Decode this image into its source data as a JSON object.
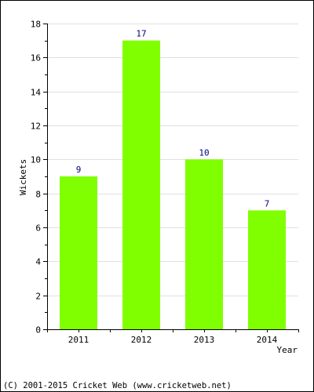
{
  "chart_data": {
    "type": "bar",
    "categories": [
      "2011",
      "2012",
      "2013",
      "2014"
    ],
    "values": [
      9,
      17,
      10,
      7
    ],
    "data_labels": [
      "9",
      "17",
      "10",
      "7"
    ],
    "xlabel": "Year",
    "ylabel": "Wickets",
    "ylim": [
      0,
      18
    ],
    "y_ticks": [
      0,
      2,
      4,
      6,
      8,
      10,
      12,
      14,
      16,
      18
    ],
    "grid": true,
    "legend": "none"
  },
  "colors": {
    "bar": "#80ff00",
    "text": "#000000",
    "data_label": "#000080",
    "grid": "#e0e0e0",
    "axis": "#000000",
    "frame": "#000000"
  },
  "footer": {
    "copyright": "(C) 2001-2015 Cricket Web (www.cricketweb.net)"
  }
}
